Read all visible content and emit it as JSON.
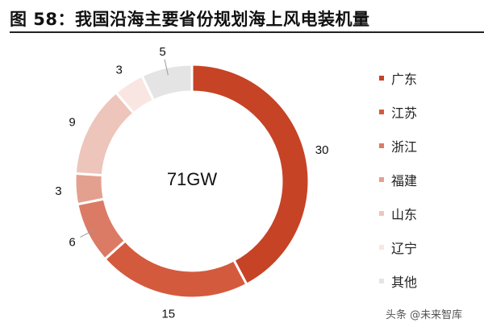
{
  "title": "图 58：我国沿海主要省份规划海上风电装机量",
  "watermark": "头条 @未来智库",
  "chart_data": {
    "type": "pie",
    "donut": true,
    "center_label": "71GW",
    "categories": [
      "广东",
      "江苏",
      "浙江",
      "福建",
      "山东",
      "辽宁",
      "其他"
    ],
    "values": [
      30,
      15,
      6,
      3,
      9,
      3,
      5
    ],
    "colors": [
      "#c64326",
      "#d45a3e",
      "#db7b66",
      "#e4a08f",
      "#eec5bb",
      "#f9e6e3",
      "#e4e4e4"
    ],
    "legend_position": "right",
    "start": "top",
    "direction": "clockwise"
  }
}
